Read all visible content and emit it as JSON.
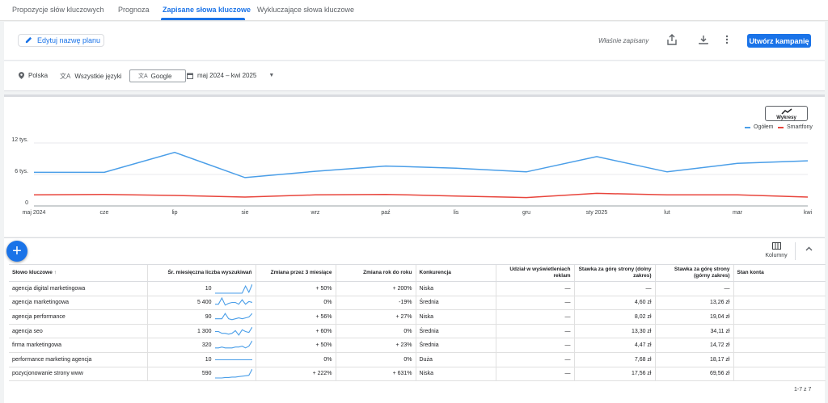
{
  "tabs": [
    {
      "label": "Propozycje słów kluczowych"
    },
    {
      "label": "Prognoza"
    },
    {
      "label": "Zapisane słowa kluczowe"
    },
    {
      "label": "Wykluczające słowa kluczowe"
    }
  ],
  "toolbar": {
    "edit_label": "Edytuj nazwę planu",
    "saved_status": "Właśnie zapisany",
    "create_label": "Utwórz kampanię"
  },
  "filters": {
    "location": "Polska",
    "language": "Wszystkie języki",
    "network": "Google",
    "date_range": "maj 2024 – kwi 2025"
  },
  "chart": {
    "view_label": "Wykresy",
    "legend": [
      {
        "name": "Ogółem",
        "color": "#4a9ee8"
      },
      {
        "name": "Smartfony",
        "color": "#e8453c"
      }
    ]
  },
  "chart_data": {
    "type": "line",
    "x": [
      "maj 2024",
      "cze",
      "lip",
      "sie",
      "wrz",
      "paź",
      "lis",
      "gru",
      "sty 2025",
      "lut",
      "mar",
      "kwi"
    ],
    "y_ticks": [
      "0",
      "6 tys.",
      "12 tys."
    ],
    "ylim": [
      0,
      12000
    ],
    "grid": true,
    "legend_position": "top-right",
    "series": [
      {
        "name": "Ogółem",
        "color": "#4a9ee8",
        "values": [
          6400,
          6400,
          10200,
          5400,
          6600,
          7600,
          7200,
          6500,
          9400,
          6500,
          8100,
          8600
        ]
      },
      {
        "name": "Smartfony",
        "color": "#e8453c",
        "values": [
          2100,
          2200,
          2000,
          1700,
          2100,
          2200,
          1900,
          1600,
          2400,
          2100,
          2100,
          1700
        ]
      }
    ]
  },
  "table": {
    "add_label": "+",
    "columns_label": "Kolumny",
    "headers": [
      "Słowo kluczowe",
      "Śr. miesięczna liczba wyszukiwań",
      "Zmiana przez 3 miesiące",
      "Zmiana rok do roku",
      "Konkurencja",
      "Udział w wyświetleniach reklam",
      "Stawka za górę strony (dolny zakres)",
      "Stawka za górę strony (górny zakres)",
      "Stan konta"
    ],
    "rows": [
      {
        "keyword": "agencja digital marketingowa",
        "volume": "10",
        "change_3m": "+ 50%",
        "change_yoy": "+ 200%",
        "competition": "Niska",
        "impression_share": "—",
        "bid_low": "—",
        "bid_high": "—",
        "status": "",
        "trend": [
          0,
          0,
          0,
          0,
          0,
          0,
          0,
          0,
          0,
          0.8,
          0.1,
          1
        ]
      },
      {
        "keyword": "agencja marketingowa",
        "volume": "5 400",
        "change_3m": "0%",
        "change_yoy": "-19%",
        "competition": "Średnia",
        "impression_share": "—",
        "bid_low": "4,60 zł",
        "bid_high": "13,26 zł",
        "status": "",
        "trend": [
          0.3,
          0.3,
          1,
          0.2,
          0.4,
          0.5,
          0.5,
          0.3,
          0.8,
          0.3,
          0.6,
          0.5
        ]
      },
      {
        "keyword": "agencja performance",
        "volume": "90",
        "change_3m": "+ 56%",
        "change_yoy": "+ 27%",
        "competition": "Niska",
        "impression_share": "—",
        "bid_low": "8,02 zł",
        "bid_high": "19,04 zł",
        "status": "",
        "trend": [
          0.3,
          0.3,
          0.3,
          0.9,
          0.3,
          0.2,
          0.3,
          0.4,
          0.3,
          0.4,
          0.5,
          0.9
        ]
      },
      {
        "keyword": "agencja seo",
        "volume": "1 300",
        "change_3m": "+ 60%",
        "change_yoy": "0%",
        "competition": "Średnia",
        "impression_share": "—",
        "bid_low": "13,30 zł",
        "bid_high": "34,11 zł",
        "status": "",
        "trend": [
          0.5,
          0.5,
          0.3,
          0.3,
          0.2,
          0.3,
          0.6,
          0.1,
          0.7,
          0.5,
          0.4,
          1
        ]
      },
      {
        "keyword": "firma marketingowa",
        "volume": "320",
        "change_3m": "+ 50%",
        "change_yoy": "+ 23%",
        "competition": "Średnia",
        "impression_share": "—",
        "bid_low": "4,47 zł",
        "bid_high": "14,72 zł",
        "status": "",
        "trend": [
          0.2,
          0.2,
          0.3,
          0.2,
          0.2,
          0.2,
          0.3,
          0.3,
          0.4,
          0.2,
          0.4,
          1
        ]
      },
      {
        "keyword": "performance marketing agencja",
        "volume": "10",
        "change_3m": "0%",
        "change_yoy": "0%",
        "competition": "Duża",
        "impression_share": "—",
        "bid_low": "7,68 zł",
        "bid_high": "18,17 zł",
        "status": "",
        "trend": [
          0.5,
          0.5,
          0.5,
          0.5,
          0.5,
          0.5,
          0.5,
          0.5,
          0.5,
          0.5,
          0.5,
          0.5
        ]
      },
      {
        "keyword": "pozycjonowanie strony www",
        "volume": "590",
        "change_3m": "+ 222%",
        "change_yoy": "+ 631%",
        "competition": "Niska",
        "impression_share": "—",
        "bid_low": "17,56 zł",
        "bid_high": "69,56 zł",
        "status": "",
        "trend": [
          0,
          0,
          0,
          0.05,
          0.05,
          0.1,
          0.1,
          0.15,
          0.2,
          0.25,
          0.3,
          1
        ]
      }
    ],
    "pager": "1-7 z 7"
  }
}
